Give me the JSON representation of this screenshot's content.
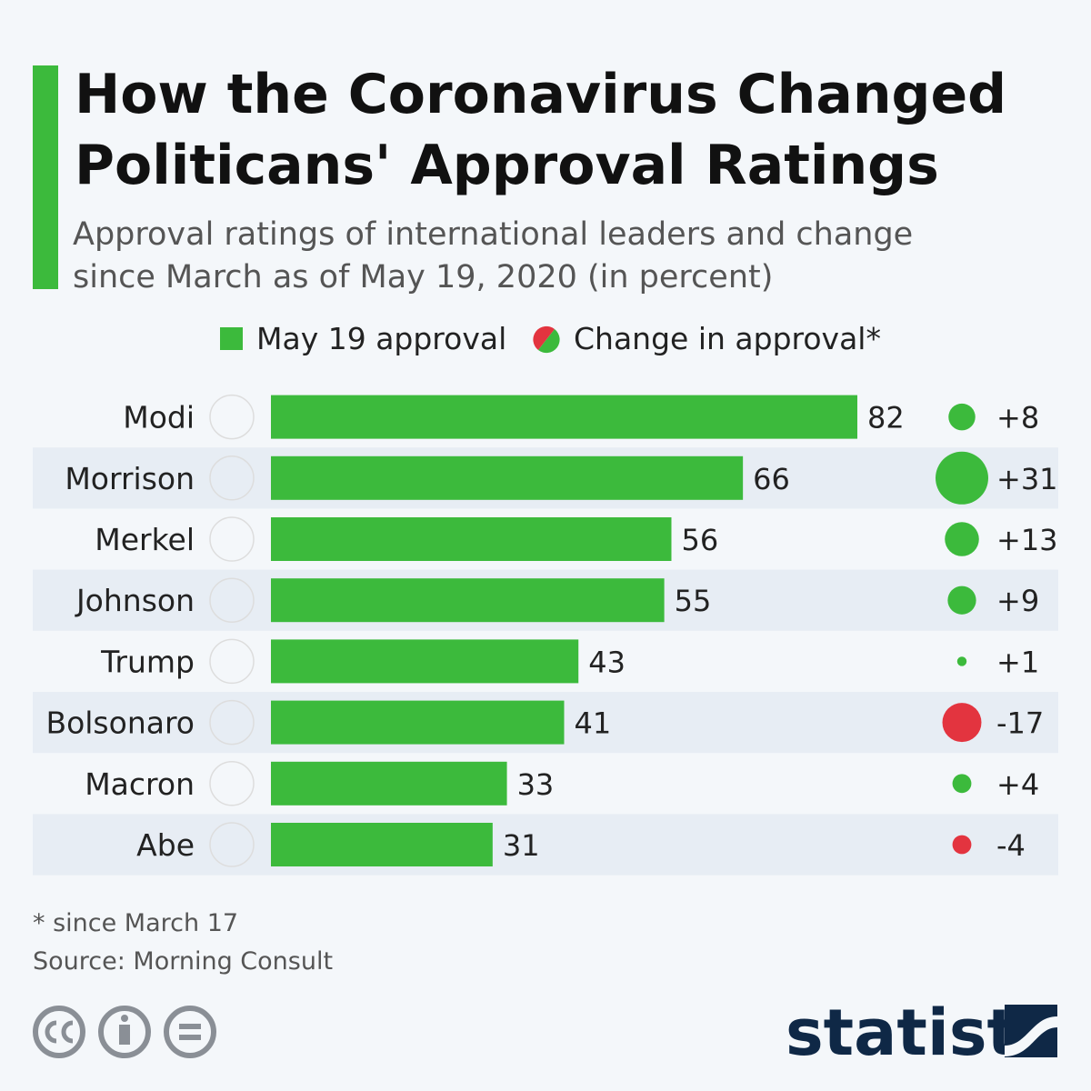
{
  "chart_data": {
    "type": "bar",
    "title_lines": [
      "How the Coronavirus Changed",
      "Politicans' Approval Ratings"
    ],
    "subtitle_lines": [
      "Approval ratings of international leaders and change",
      "since March as of May 19, 2020 (in percent)"
    ],
    "categories": [
      "Modi",
      "Morrison",
      "Merkel",
      "Johnson",
      "Trump",
      "Bolsonaro",
      "Macron",
      "Abe"
    ],
    "series": [
      {
        "name": "May 19 approval",
        "color": "#3cba3c",
        "values": [
          82,
          66,
          56,
          55,
          43,
          41,
          33,
          31
        ]
      },
      {
        "name": "Change in approval*",
        "color": "#3cba3c",
        "negative_color": "#e3343f",
        "values": [
          8,
          31,
          13,
          9,
          1,
          -17,
          4,
          -4
        ],
        "value_labels": [
          "+8",
          "+31",
          "+13",
          "+9",
          "+1",
          "-17",
          "+4",
          "-4"
        ]
      }
    ],
    "notes": [
      "* since March 17",
      "Source: Morning Consult"
    ],
    "brand": "statista"
  }
}
